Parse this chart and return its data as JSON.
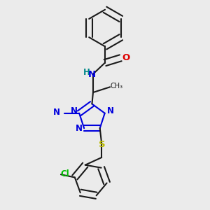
{
  "bg": "#ebebeb",
  "bc": "#1a1a1a",
  "nc": "#0000dd",
  "oc": "#dd0000",
  "sc": "#bbbb00",
  "clc": "#00bb00",
  "hc": "#008888",
  "lw": 1.5,
  "fs": 8.5,
  "fig_w": 3.0,
  "fig_h": 3.0,
  "dpi": 100,
  "xlim": [
    0.1,
    0.9
  ],
  "ylim": [
    0.02,
    0.98
  ]
}
